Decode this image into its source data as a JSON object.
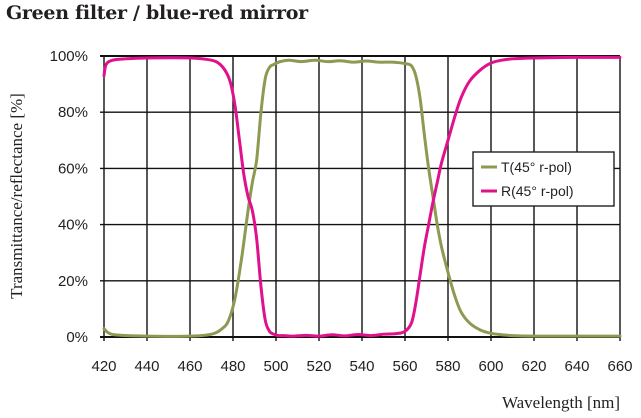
{
  "title": "Green filter / blue-red mirror",
  "colors": {
    "T": "#8c9a52",
    "R": "#e0118c",
    "grid": "#111111",
    "text": "#231f20"
  },
  "chart_data": {
    "type": "line",
    "title": "Green filter / blue-red mirror",
    "xlabel": "Wavelength [nm]",
    "ylabel": "Transmittance/reflectance [%]",
    "xlim": [
      420,
      660
    ],
    "ylim": [
      0,
      100
    ],
    "xticks": [
      420,
      440,
      460,
      480,
      500,
      520,
      540,
      560,
      580,
      600,
      620,
      640,
      660
    ],
    "yticks": [
      0,
      20,
      40,
      60,
      80,
      100
    ],
    "ytick_labels": [
      "0%",
      "20%",
      "40%",
      "60%",
      "80%",
      "100%"
    ],
    "grid": true,
    "legend_position": "right-middle",
    "series": [
      {
        "name": "T(45° r-pol)",
        "color": "#8c9a52",
        "x": [
          420,
          422,
          426,
          440,
          460,
          470,
          475,
          478,
          481,
          484,
          487,
          489,
          491,
          493,
          495,
          497,
          499,
          502,
          506,
          512,
          518,
          524,
          530,
          536,
          542,
          548,
          554,
          560,
          563,
          565,
          567,
          569,
          571,
          573,
          575,
          577,
          580,
          583,
          586,
          590,
          595,
          600,
          605,
          610,
          620,
          640,
          660
        ],
        "values": [
          3,
          1.5,
          0.7,
          0.3,
          0.3,
          1,
          3,
          6,
          14,
          28,
          45,
          55,
          63,
          80,
          92,
          96,
          97,
          98,
          98.5,
          98,
          98.5,
          98,
          98.3,
          97.8,
          98.2,
          97.8,
          97.8,
          97.3,
          96.5,
          93,
          85,
          72,
          60,
          50,
          40,
          32,
          23,
          15,
          9,
          5,
          2.5,
          1.3,
          0.8,
          0.5,
          0.3,
          0.3,
          0.3
        ]
      },
      {
        "name": "R(45° r-pol)",
        "color": "#e0118c",
        "x": [
          420,
          421,
          424,
          430,
          440,
          460,
          470,
          474,
          477,
          479,
          481,
          483,
          485,
          487,
          489,
          491,
          493,
          495,
          497,
          499,
          501,
          504,
          508,
          514,
          520,
          526,
          532,
          538,
          544,
          550,
          556,
          560,
          563,
          565,
          567,
          569,
          571,
          573,
          575,
          577,
          580,
          583,
          586,
          590,
          595,
          600,
          605,
          610,
          620,
          640,
          660
        ],
        "values": [
          93,
          97,
          98.5,
          99,
          99.3,
          99.3,
          98.5,
          97,
          94,
          90,
          82,
          70,
          58,
          50,
          45,
          35,
          18,
          6,
          2,
          1,
          0.5,
          0.5,
          0.3,
          0.6,
          0.3,
          0.8,
          0.4,
          0.9,
          0.5,
          1,
          1.2,
          2,
          5,
          12,
          22,
          32,
          40,
          48,
          55,
          62,
          70,
          78,
          85,
          91,
          95,
          97.5,
          98.5,
          99,
          99.3,
          99.5,
          99.5
        ]
      }
    ]
  },
  "legend": {
    "items": [
      {
        "label": "T(45° r-pol)",
        "color": "#8c9a52"
      },
      {
        "label": "R(45° r-pol)",
        "color": "#e0118c"
      }
    ]
  }
}
